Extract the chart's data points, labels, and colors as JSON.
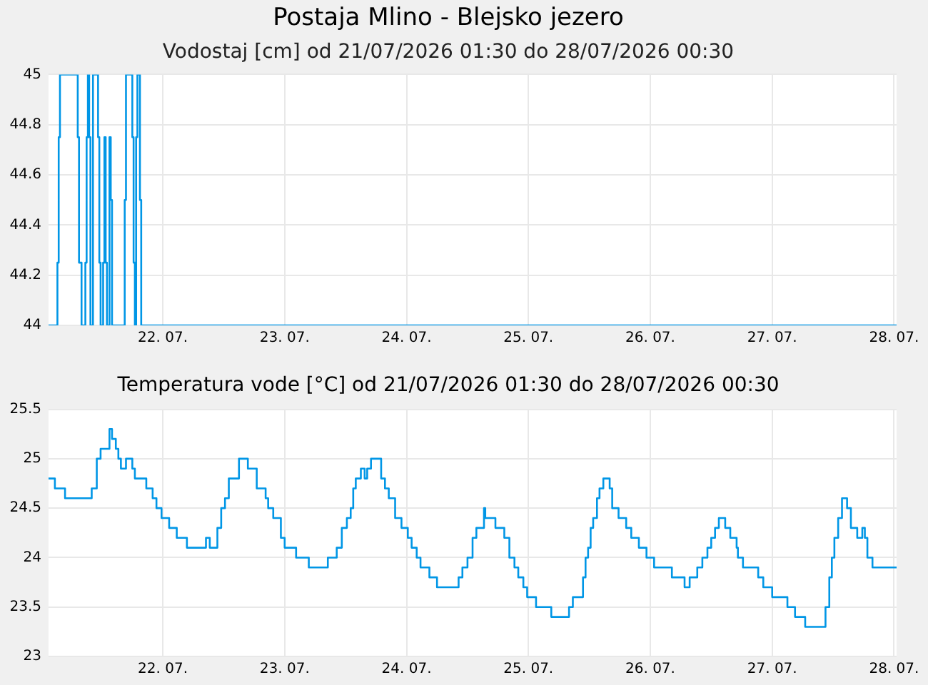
{
  "chart_data": [
    {
      "type": "step",
      "title": "Postaja Mlino - Blejsko jezero",
      "subtitle": "Vodostaj [cm] od 21/07/2026 01:30 do 28/07/2026 00:30",
      "color": "#0096e6",
      "grid": true,
      "xlim": [
        "2026-07-21T01:30",
        "2026-07-28T00:30"
      ],
      "xticks": [
        {
          "value": "2026-07-22",
          "label": "22. 07."
        },
        {
          "value": "2026-07-23",
          "label": "23. 07."
        },
        {
          "value": "2026-07-24",
          "label": "24. 07."
        },
        {
          "value": "2026-07-25",
          "label": "25. 07."
        },
        {
          "value": "2026-07-26",
          "label": "26. 07."
        },
        {
          "value": "2026-07-27",
          "label": "27. 07."
        },
        {
          "value": "2026-07-28",
          "label": "28. 07."
        }
      ],
      "ylim": [
        44,
        45
      ],
      "yticks": [
        44,
        44.2,
        44.4,
        44.6,
        44.8,
        45
      ],
      "x": [
        "2026-07-21T01:30",
        "2026-07-21T03:15",
        "2026-07-21T03:30",
        "2026-07-21T03:45",
        "2026-07-21T07:15",
        "2026-07-21T07:30",
        "2026-07-21T08:00",
        "2026-07-21T08:45",
        "2026-07-21T09:00",
        "2026-07-21T09:15",
        "2026-07-21T09:30",
        "2026-07-21T09:45",
        "2026-07-21T10:15",
        "2026-07-21T11:15",
        "2026-07-21T11:30",
        "2026-07-21T11:45",
        "2026-07-21T12:15",
        "2026-07-21T12:30",
        "2026-07-21T12:45",
        "2026-07-21T13:00",
        "2026-07-21T13:30",
        "2026-07-21T13:45",
        "2026-07-21T14:00",
        "2026-07-21T16:30",
        "2026-07-21T16:45",
        "2026-07-21T18:00",
        "2026-07-21T18:15",
        "2026-07-21T18:30",
        "2026-07-21T18:45",
        "2026-07-21T19:00",
        "2026-07-21T19:30",
        "2026-07-21T19:45",
        "2026-07-28T00:30"
      ],
      "values": [
        44,
        44.25,
        44.75,
        45,
        44.75,
        44.25,
        44,
        44.25,
        44.75,
        45,
        44.75,
        44,
        45,
        44.75,
        44.25,
        44,
        44.25,
        44.75,
        44.25,
        44,
        44.75,
        44.5,
        44,
        44.5,
        45,
        44.75,
        44.25,
        44,
        44.75,
        45,
        44.5,
        44,
        44
      ]
    },
    {
      "type": "step",
      "title": "Temperatura vode [°C] od 21/07/2026 01:30 do 28/07/2026 00:30",
      "color": "#0096e6",
      "grid": true,
      "xlim": [
        "2026-07-21T01:30",
        "2026-07-28T00:30"
      ],
      "xticks": [
        {
          "value": "2026-07-22",
          "label": "22. 07."
        },
        {
          "value": "2026-07-23",
          "label": "23. 07."
        },
        {
          "value": "2026-07-24",
          "label": "24. 07."
        },
        {
          "value": "2026-07-25",
          "label": "25. 07."
        },
        {
          "value": "2026-07-26",
          "label": "26. 07."
        },
        {
          "value": "2026-07-27",
          "label": "27. 07."
        },
        {
          "value": "2026-07-28",
          "label": "28. 07."
        }
      ],
      "ylim": [
        23,
        25.5
      ],
      "yticks": [
        23,
        23.5,
        24,
        24.5,
        25,
        25.5
      ],
      "x": [
        "2026-07-21T01:30",
        "2026-07-21T02:30",
        "2026-07-21T02:45",
        "2026-07-21T04:30",
        "2026-07-21T04:45",
        "2026-07-21T09:45",
        "2026-07-21T10:00",
        "2026-07-21T11:00",
        "2026-07-21T11:45",
        "2026-07-21T12:30",
        "2026-07-21T13:30",
        "2026-07-21T14:00",
        "2026-07-21T14:45",
        "2026-07-21T15:15",
        "2026-07-21T15:45",
        "2026-07-21T16:30",
        "2026-07-21T16:45",
        "2026-07-21T17:15",
        "2026-07-21T18:00",
        "2026-07-21T18:30",
        "2026-07-21T20:15",
        "2026-07-21T20:45",
        "2026-07-21T21:30",
        "2026-07-21T22:00",
        "2026-07-21T22:45",
        "2026-07-21T23:15",
        "2026-07-21T23:45",
        "2026-07-22T01:00",
        "2026-07-22T01:15",
        "2026-07-22T02:30",
        "2026-07-22T02:45",
        "2026-07-22T04:15",
        "2026-07-22T04:45",
        "2026-07-22T07:45",
        "2026-07-22T08:30",
        "2026-07-22T09:00",
        "2026-07-22T09:15",
        "2026-07-22T10:15",
        "2026-07-22T10:45",
        "2026-07-22T11:30",
        "2026-07-22T12:15",
        "2026-07-22T13:00",
        "2026-07-22T14:15",
        "2026-07-22T15:00",
        "2026-07-22T16:15",
        "2026-07-22T16:45",
        "2026-07-22T17:45",
        "2026-07-22T18:30",
        "2026-07-22T19:15",
        "2026-07-22T20:15",
        "2026-07-22T20:45",
        "2026-07-22T21:45",
        "2026-07-22T22:30",
        "2026-07-22T23:15",
        "2026-07-23T00:00",
        "2026-07-23T02:00",
        "2026-07-23T02:15",
        "2026-07-23T04:30",
        "2026-07-23T04:45",
        "2026-07-23T08:15",
        "2026-07-23T08:30",
        "2026-07-23T10:00",
        "2026-07-23T10:15",
        "2026-07-23T11:15",
        "2026-07-23T12:15",
        "2026-07-23T13:00",
        "2026-07-23T13:30",
        "2026-07-23T14:00",
        "2026-07-23T15:00",
        "2026-07-23T15:30",
        "2026-07-23T15:45",
        "2026-07-23T16:15",
        "2026-07-23T17:00",
        "2026-07-23T18:15",
        "2026-07-23T19:00",
        "2026-07-23T19:45",
        "2026-07-23T20:30",
        "2026-07-23T21:00",
        "2026-07-23T21:45",
        "2026-07-23T23:00",
        "2026-07-23T23:45",
        "2026-07-24T00:15",
        "2026-07-24T01:00",
        "2026-07-24T02:00",
        "2026-07-24T02:45",
        "2026-07-24T04:00",
        "2026-07-24T04:30",
        "2026-07-24T05:30",
        "2026-07-24T06:00",
        "2026-07-24T10:00",
        "2026-07-24T10:15",
        "2026-07-24T11:00",
        "2026-07-24T12:00",
        "2026-07-24T13:00",
        "2026-07-24T13:45",
        "2026-07-24T14:45",
        "2026-07-24T15:15",
        "2026-07-24T15:30",
        "2026-07-24T17:00",
        "2026-07-24T17:30",
        "2026-07-24T18:45",
        "2026-07-24T19:15",
        "2026-07-24T20:15",
        "2026-07-24T21:15",
        "2026-07-24T22:00",
        "2026-07-24T23:00",
        "2026-07-24T23:45",
        "2026-07-25T00:45",
        "2026-07-25T01:30",
        "2026-07-25T04:00",
        "2026-07-25T04:30",
        "2026-07-25T07:15",
        "2026-07-25T08:00",
        "2026-07-25T08:45",
        "2026-07-25T10:00",
        "2026-07-25T10:45",
        "2026-07-25T11:15",
        "2026-07-25T11:45",
        "2026-07-25T12:15",
        "2026-07-25T12:45",
        "2026-07-25T13:30",
        "2026-07-25T14:00",
        "2026-07-25T14:45",
        "2026-07-25T15:30",
        "2026-07-25T16:00",
        "2026-07-25T16:30",
        "2026-07-25T17:30",
        "2026-07-25T17:45",
        "2026-07-25T19:00",
        "2026-07-25T19:15",
        "2026-07-25T20:00",
        "2026-07-25T20:15",
        "2026-07-25T21:15",
        "2026-07-25T21:45",
        "2026-07-25T23:00",
        "2026-07-25T23:15",
        "2026-07-26T00:30",
        "2026-07-26T00:45",
        "2026-07-26T03:45",
        "2026-07-26T04:15",
        "2026-07-26T06:15",
        "2026-07-26T06:45",
        "2026-07-26T07:15",
        "2026-07-26T07:45",
        "2026-07-26T08:45",
        "2026-07-26T09:15",
        "2026-07-26T10:00",
        "2026-07-26T10:15",
        "2026-07-26T11:00",
        "2026-07-26T11:15",
        "2026-07-26T12:00",
        "2026-07-26T12:45",
        "2026-07-26T13:30",
        "2026-07-26T14:15",
        "2026-07-26T14:45",
        "2026-07-26T15:45",
        "2026-07-26T16:30",
        "2026-07-26T17:00",
        "2026-07-26T17:15",
        "2026-07-26T18:15",
        "2026-07-26T21:00",
        "2026-07-26T21:15",
        "2026-07-26T22:00",
        "2026-07-26T22:15",
        "2026-07-26T23:30",
        "2026-07-27T00:00",
        "2026-07-27T02:30",
        "2026-07-27T03:00",
        "2026-07-27T04:00",
        "2026-07-27T04:30",
        "2026-07-27T06:00",
        "2026-07-27T06:30",
        "2026-07-27T10:00",
        "2026-07-27T10:30",
        "2026-07-27T11:15",
        "2026-07-27T11:45",
        "2026-07-27T12:15",
        "2026-07-27T13:00",
        "2026-07-27T13:45",
        "2026-07-27T14:15",
        "2026-07-27T14:45",
        "2026-07-27T15:30",
        "2026-07-27T16:15",
        "2026-07-27T16:45",
        "2026-07-27T17:30",
        "2026-07-27T17:45",
        "2026-07-27T18:15",
        "2026-07-27T18:45",
        "2026-07-27T19:00",
        "2026-07-27T19:45",
        "2026-07-28T00:30"
      ],
      "values": [
        24.8,
        24.8,
        24.7,
        24.7,
        24.6,
        24.6,
        24.7,
        25.0,
        25.1,
        25.1,
        25.3,
        25.2,
        25.1,
        25.0,
        24.9,
        24.9,
        25.0,
        25.0,
        24.9,
        24.8,
        24.8,
        24.7,
        24.7,
        24.6,
        24.5,
        24.5,
        24.4,
        24.4,
        24.3,
        24.3,
        24.2,
        24.2,
        24.1,
        24.1,
        24.2,
        24.2,
        24.1,
        24.1,
        24.3,
        24.5,
        24.6,
        24.8,
        24.8,
        25.0,
        25.0,
        24.9,
        24.9,
        24.7,
        24.7,
        24.6,
        24.5,
        24.4,
        24.4,
        24.2,
        24.1,
        24.1,
        24.0,
        24.0,
        23.9,
        23.9,
        24.0,
        24.0,
        24.1,
        24.3,
        24.4,
        24.5,
        24.7,
        24.8,
        24.9,
        24.9,
        24.8,
        24.9,
        25.0,
        25.0,
        24.8,
        24.7,
        24.6,
        24.6,
        24.4,
        24.3,
        24.3,
        24.2,
        24.1,
        24.0,
        23.9,
        23.9,
        23.8,
        23.8,
        23.7,
        23.7,
        23.8,
        23.9,
        24.0,
        24.2,
        24.3,
        24.3,
        24.5,
        24.4,
        24.4,
        24.3,
        24.3,
        24.2,
        24.0,
        23.9,
        23.8,
        23.7,
        23.6,
        23.6,
        23.5,
        23.5,
        23.4,
        23.4,
        23.5,
        23.6,
        23.6,
        23.8,
        24.0,
        24.1,
        24.3,
        24.4,
        24.6,
        24.7,
        24.8,
        24.8,
        24.7,
        24.5,
        24.5,
        24.4,
        24.4,
        24.3,
        24.3,
        24.2,
        24.2,
        24.1,
        24.1,
        24.0,
        24.0,
        23.9,
        23.9,
        23.8,
        23.8,
        23.7,
        23.7,
        23.8,
        23.8,
        23.9,
        23.9,
        24.0,
        24.0,
        24.1,
        24.2,
        24.3,
        24.4,
        24.4,
        24.3,
        24.2,
        24.2,
        24.1,
        24.0,
        23.9,
        23.9,
        23.8,
        23.8,
        23.7,
        23.7,
        23.6,
        23.6,
        23.5,
        23.5,
        23.4,
        23.4,
        23.3,
        23.3,
        23.5,
        23.8,
        24.0,
        24.2,
        24.4,
        24.6,
        24.6,
        24.5,
        24.3,
        24.3,
        24.2,
        24.2,
        24.3,
        24.2,
        24.0,
        24.0,
        23.9,
        23.9
      ]
    }
  ]
}
